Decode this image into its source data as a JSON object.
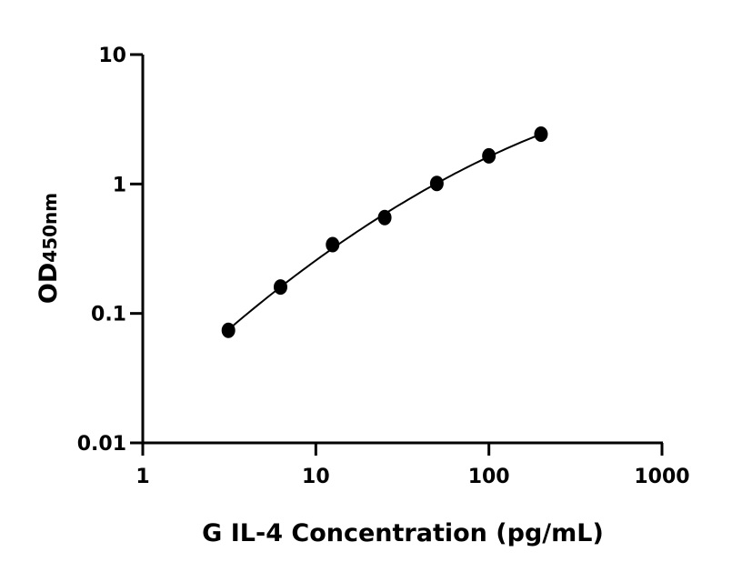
{
  "chart_data": {
    "type": "scatter",
    "xlabel": "G IL-4 Concentration (pg/mL)",
    "ylabel": "OD",
    "ylabel_subscript": "450nm",
    "x_scale": "log",
    "y_scale": "log",
    "xlim": [
      1,
      1000
    ],
    "ylim": [
      0.01,
      10
    ],
    "x_ticks": [
      "1",
      "10",
      "100",
      "1000"
    ],
    "y_ticks": [
      "0.01",
      "0.1",
      "1",
      "10"
    ],
    "grid": false,
    "fit_curve": true,
    "colors": {
      "points": "#000000",
      "curve": "#000000"
    },
    "series": [
      {
        "x": [
          3.125,
          6.25,
          12.5,
          25,
          50,
          100,
          200
        ],
        "y": [
          0.074,
          0.16,
          0.34,
          0.55,
          1.01,
          1.65,
          2.43
        ]
      }
    ]
  }
}
